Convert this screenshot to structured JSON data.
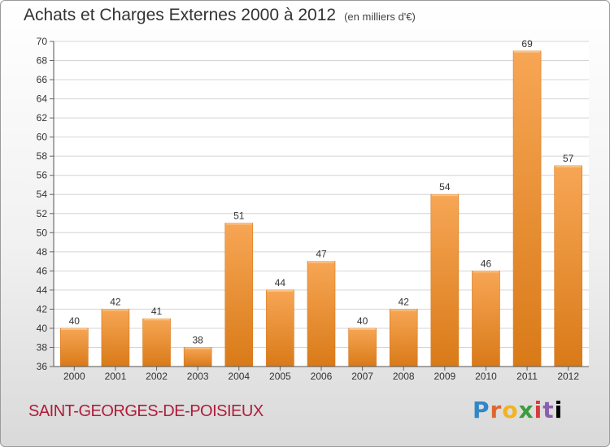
{
  "header": {
    "title": "Achats et Charges Externes 2000 à 2012",
    "unit": "(en milliers d'€)"
  },
  "footer": {
    "commune": "SAINT-GEORGES-DE-POISIEUX",
    "logo_letters": [
      "P",
      "r",
      "o",
      "x",
      "i",
      "t",
      "i"
    ]
  },
  "colors": {
    "bar_top": "#f7a655",
    "bar_bottom": "#d97a18",
    "commune": "#b01c3a"
  },
  "chart_data": {
    "type": "bar",
    "title": "Achats et Charges Externes 2000 à 2012",
    "subtitle": "(en milliers d'€)",
    "categories": [
      "2000",
      "2001",
      "2002",
      "2003",
      "2004",
      "2005",
      "2006",
      "2007",
      "2008",
      "2009",
      "2010",
      "2011",
      "2012"
    ],
    "values": [
      40,
      42,
      41,
      38,
      51,
      44,
      47,
      40,
      42,
      54,
      46,
      69,
      57
    ],
    "ylim": [
      36,
      70
    ],
    "yticks": [
      36,
      38,
      40,
      42,
      44,
      46,
      48,
      50,
      52,
      54,
      56,
      58,
      60,
      62,
      64,
      66,
      68,
      70
    ],
    "grid": true,
    "legend": "none"
  }
}
